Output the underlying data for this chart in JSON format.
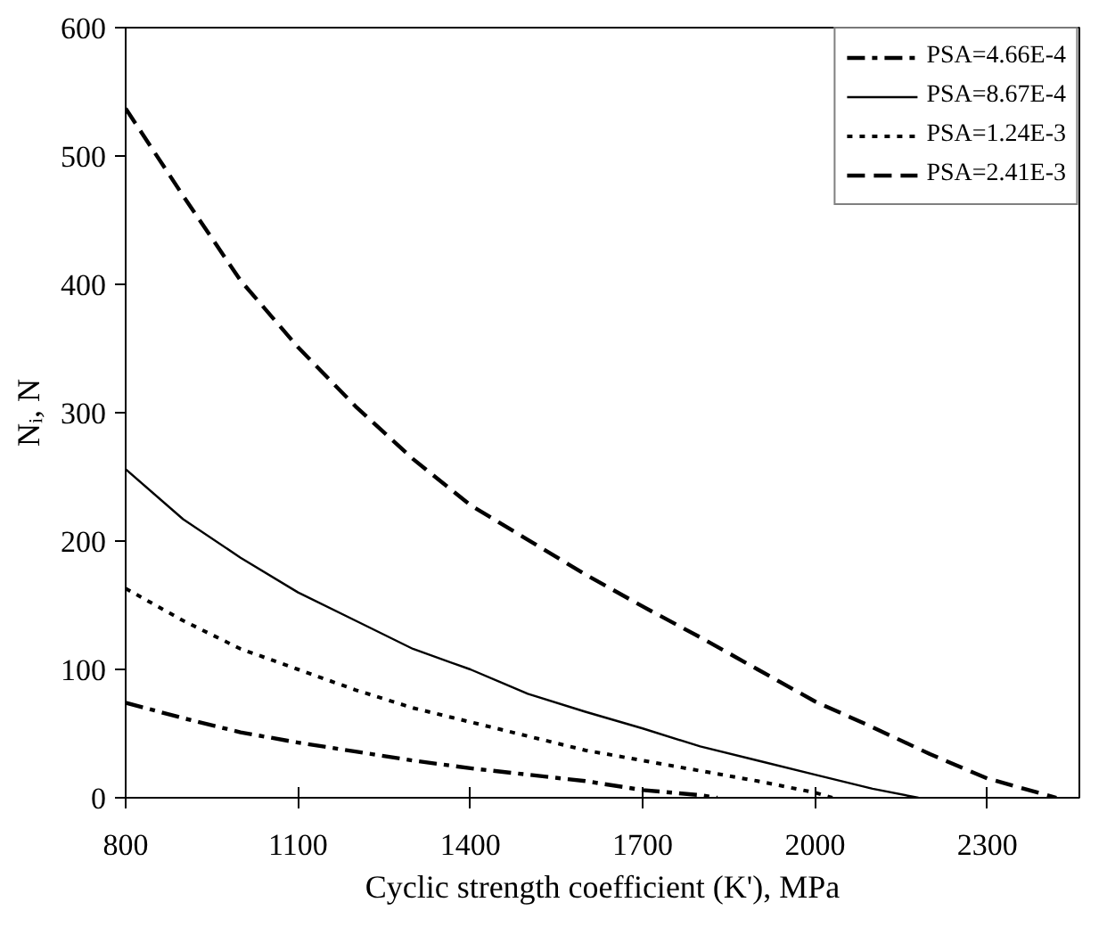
{
  "chart_data": {
    "type": "line",
    "xlabel": "Cyclic strength coefficient (K'), MPa",
    "ylabel": "Nᵢ, N",
    "xlim": [
      800,
      2460
    ],
    "ylim": [
      0,
      600
    ],
    "xticks": [
      800,
      1100,
      1400,
      1700,
      2000,
      2300
    ],
    "yticks": [
      0,
      100,
      200,
      300,
      400,
      500,
      600
    ],
    "grid": false,
    "legend": "top right",
    "series": [
      {
        "name": "PSA=4.66E-4",
        "color": "#000000",
        "line_style": "dashdot",
        "x": [
          800,
          900,
          1000,
          1100,
          1200,
          1300,
          1400,
          1500,
          1600,
          1700,
          1800,
          1830
        ],
        "values": [
          74,
          62,
          51,
          43,
          36,
          29,
          23,
          18,
          13,
          6,
          2,
          0
        ]
      },
      {
        "name": "PSA=8.67E-4",
        "color": "#000000",
        "line_style": "solid",
        "x": [
          800,
          900,
          1000,
          1100,
          1200,
          1300,
          1400,
          1500,
          1600,
          1700,
          1800,
          1900,
          2000,
          2100,
          2180
        ],
        "values": [
          256,
          217,
          187,
          160,
          138,
          116,
          100,
          81,
          67,
          54,
          40,
          29,
          18,
          7,
          0
        ]
      },
      {
        "name": "PSA=1.24E-3",
        "color": "#000000",
        "line_style": "dotted",
        "x": [
          800,
          900,
          1000,
          1100,
          1200,
          1300,
          1400,
          1500,
          1600,
          1700,
          1800,
          1900,
          2000,
          2030
        ],
        "values": [
          163,
          138,
          116,
          100,
          84,
          70,
          59,
          48,
          37,
          29,
          21,
          13,
          4,
          0
        ]
      },
      {
        "name": "PSA=2.41E-3",
        "color": "#000000",
        "line_style": "dashed",
        "x": [
          800,
          900,
          1000,
          1100,
          1200,
          1300,
          1400,
          1500,
          1600,
          1700,
          1800,
          1900,
          2000,
          2100,
          2200,
          2300,
          2420
        ],
        "values": [
          537,
          469,
          403,
          351,
          305,
          264,
          228,
          201,
          174,
          149,
          125,
          100,
          75,
          55,
          34,
          15,
          0
        ]
      }
    ]
  }
}
